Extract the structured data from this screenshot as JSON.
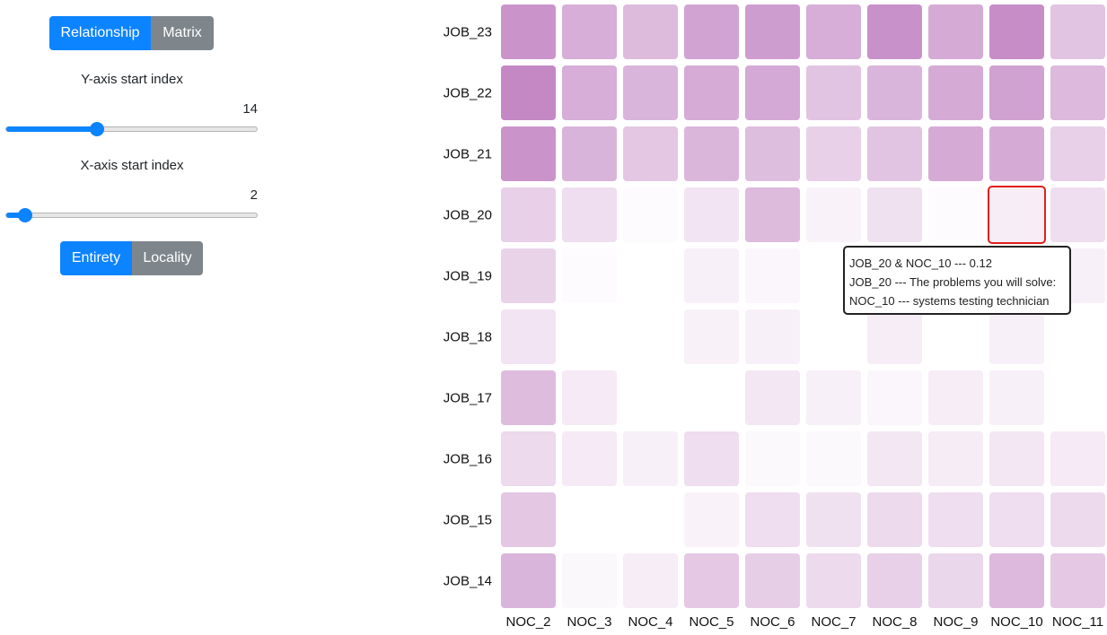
{
  "controls": {
    "view_toggle": {
      "relationship_label": "Relationship",
      "matrix_label": "Matrix",
      "active": "Relationship"
    },
    "y_axis": {
      "label": "Y-axis start index",
      "value": 14,
      "min": 0,
      "max": 40
    },
    "x_axis": {
      "label": "X-axis start index",
      "value": 2,
      "min": 0,
      "max": 40
    },
    "scope_toggle": {
      "entirety_label": "Entirety",
      "locality_label": "Locality",
      "active": "Entirety"
    }
  },
  "colors": {
    "primary": "#0d84ff",
    "secondary": "#7e868c",
    "cell_base": "#b56bb6",
    "highlight": "#e0201a"
  },
  "tooltip": {
    "line1": "JOB_20 & NOC_10 --- 0.12",
    "line2": "JOB_20 --- The problems you will solve:",
    "line3": "NOC_10 --- systems testing technician"
  },
  "chart_data": {
    "type": "heatmap",
    "x_categories": [
      "NOC_2",
      "NOC_3",
      "NOC_4",
      "NOC_5",
      "NOC_6",
      "NOC_7",
      "NOC_8",
      "NOC_9",
      "NOC_10",
      "NOC_11"
    ],
    "y_categories": [
      "JOB_23",
      "JOB_22",
      "JOB_21",
      "JOB_20",
      "JOB_19",
      "JOB_18",
      "JOB_17",
      "JOB_16",
      "JOB_15",
      "JOB_14"
    ],
    "values": [
      [
        0.72,
        0.55,
        0.46,
        0.62,
        0.66,
        0.55,
        0.74,
        0.57,
        0.77,
        0.4
      ],
      [
        0.8,
        0.55,
        0.5,
        0.56,
        0.58,
        0.4,
        0.5,
        0.57,
        0.63,
        0.47
      ],
      [
        0.72,
        0.51,
        0.38,
        0.49,
        0.44,
        0.31,
        0.4,
        0.57,
        0.57,
        0.32
      ],
      [
        0.32,
        0.22,
        0.03,
        0.18,
        0.46,
        0.08,
        0.2,
        0.03,
        0.12,
        0.22
      ],
      [
        0.3,
        0.03,
        0.0,
        0.1,
        0.06,
        0.0,
        0.0,
        0.0,
        0.0,
        0.1
      ],
      [
        0.18,
        0.0,
        0.0,
        0.09,
        0.1,
        0.0,
        0.12,
        0.0,
        0.1,
        0.0
      ],
      [
        0.45,
        0.14,
        0.0,
        0.0,
        0.16,
        0.1,
        0.06,
        0.12,
        0.1,
        0.0
      ],
      [
        0.25,
        0.14,
        0.1,
        0.22,
        0.04,
        0.04,
        0.16,
        0.13,
        0.16,
        0.14
      ],
      [
        0.38,
        0.0,
        0.0,
        0.08,
        0.22,
        0.2,
        0.24,
        0.22,
        0.22,
        0.24
      ],
      [
        0.5,
        0.05,
        0.12,
        0.37,
        0.33,
        0.24,
        0.32,
        0.27,
        0.47,
        0.37
      ]
    ],
    "highlighted_cell": {
      "x": "NOC_10",
      "y": "JOB_20",
      "value": 0.12
    },
    "title": "",
    "xlabel": "",
    "ylabel": "",
    "legend": "none",
    "grid": false
  }
}
